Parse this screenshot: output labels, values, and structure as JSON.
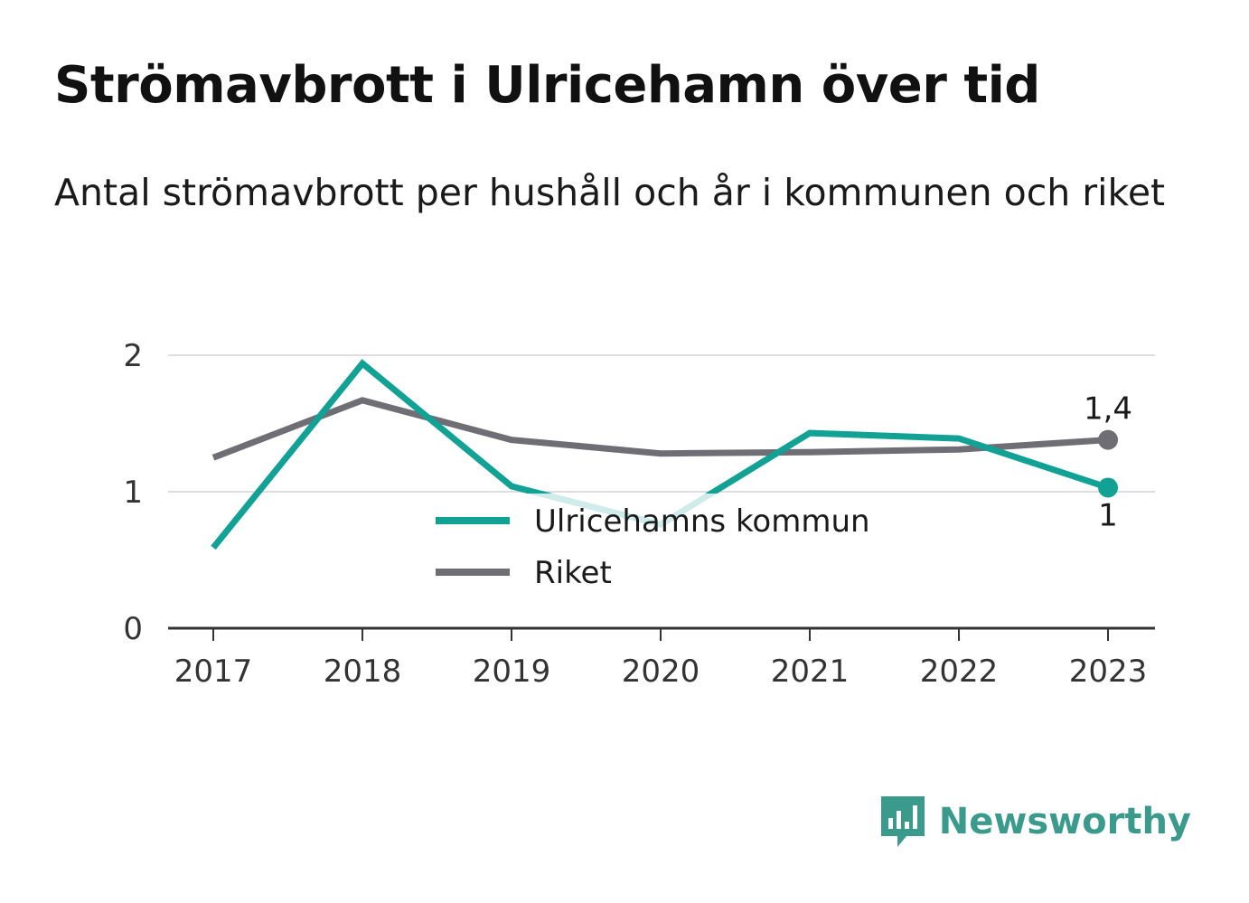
{
  "title": "Strömavbrott i Ulricehamn över tid",
  "subtitle": "Antal strömavbrott per hushåll och år i kommunen och riket",
  "brand": {
    "name": "Newsworthy",
    "icon": "newsworthy-logo-icon",
    "color": "#3a9a8c"
  },
  "chart_data": {
    "type": "line",
    "title": "Strömavbrott i Ulricehamn över tid",
    "subtitle": "Antal strömavbrott per hushåll och år i kommunen och riket",
    "xlabel": "",
    "ylabel": "",
    "categories": [
      "2017",
      "2018",
      "2019",
      "2020",
      "2021",
      "2022",
      "2023"
    ],
    "ylim": [
      0,
      2
    ],
    "yticks": [
      0,
      1,
      2
    ],
    "ytick_labels": [
      "0",
      "1",
      "2"
    ],
    "grid": true,
    "legend_position": "center",
    "series": [
      {
        "name": "Ulricehamns kommun",
        "color": "#12a195",
        "values": [
          0.59,
          1.94,
          1.04,
          0.76,
          1.43,
          1.39,
          1.03
        ],
        "end_label": "1"
      },
      {
        "name": "Riket",
        "color": "#6f6e75",
        "values": [
          1.25,
          1.67,
          1.38,
          1.28,
          1.29,
          1.31,
          1.38
        ],
        "end_label": "1,4"
      }
    ]
  }
}
